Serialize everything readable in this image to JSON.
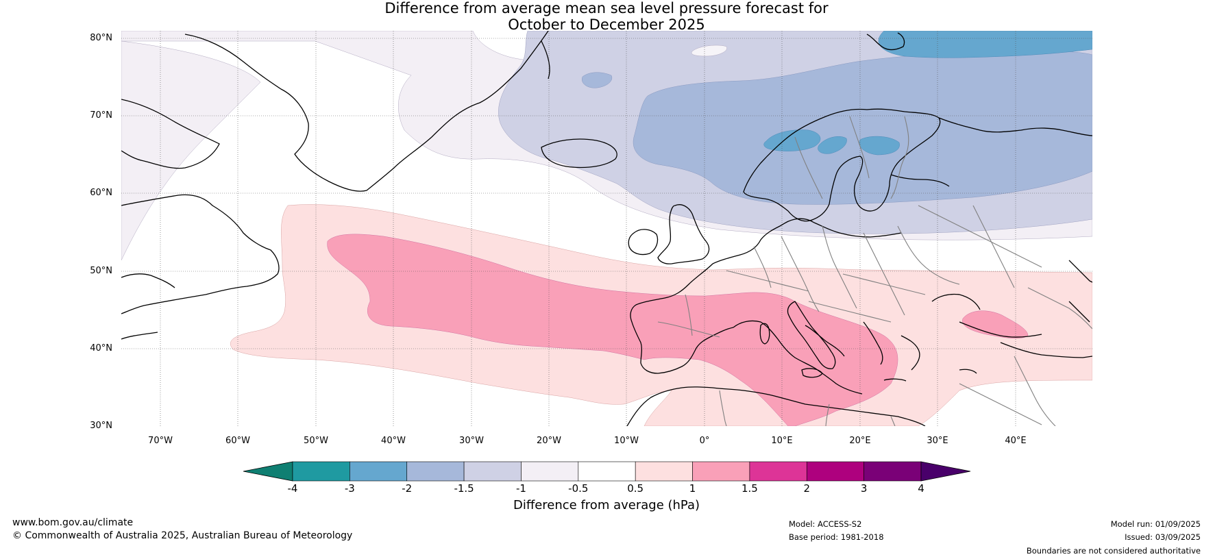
{
  "title": {
    "line1": "Difference from average mean sea level pressure forecast for",
    "line2": "October to December 2025"
  },
  "map": {
    "projection": "equirectangular",
    "region": "North Atlantic and Europe",
    "lon_range": [
      -75,
      50
    ],
    "lat_range": [
      30,
      81
    ],
    "lat_labels": [
      "80°N",
      "70°N",
      "60°N",
      "50°N",
      "40°N",
      "30°N"
    ],
    "lon_labels": [
      "70°W",
      "60°W",
      "50°W",
      "40°W",
      "30°W",
      "20°W",
      "10°W",
      "0°",
      "10°E",
      "20°E",
      "30°E",
      "40°E"
    ],
    "colors": {
      "neg_1_5_to_neg_1": "#cfd1e5",
      "neg_2_to_neg_1_5": "#a6b8da",
      "neg_3_to_neg_2": "#65a7cf",
      "neg_1_to_neg_0_5": "#f3eff5",
      "pos_0_5_to_1": "#fde0e0",
      "pos_1_to_1_5": "#f9a0b8",
      "coast": "#000000",
      "border": "#808080"
    }
  },
  "colorbar": {
    "ticks": [
      "-4",
      "-3",
      "-2",
      "-1.5",
      "-1",
      "-0.5",
      "0.5",
      "1",
      "1.5",
      "2",
      "3",
      "4"
    ],
    "colors": [
      "#0f7f72",
      "#1f9aa1",
      "#65a7cf",
      "#a6b8da",
      "#cfd1e5",
      "#f3eff5",
      "#ffffff",
      "#fde0e0",
      "#f9a0b8",
      "#dd3497",
      "#ae017e",
      "#7a0177",
      "#49006a"
    ],
    "label": "Difference from average (hPa)"
  },
  "footer": {
    "website": "www.bom.gov.au/climate",
    "copyright": "© Commonwealth of Australia 2025, Australian Bureau of Meteorology",
    "model": "Model: ACCESS-S2",
    "base_period": "Base period: 1981-2018",
    "model_run": "Model run: 01/09/2025",
    "issued": "Issued: 03/09/2025",
    "disclaimer": "Boundaries are not considered authoritative"
  }
}
